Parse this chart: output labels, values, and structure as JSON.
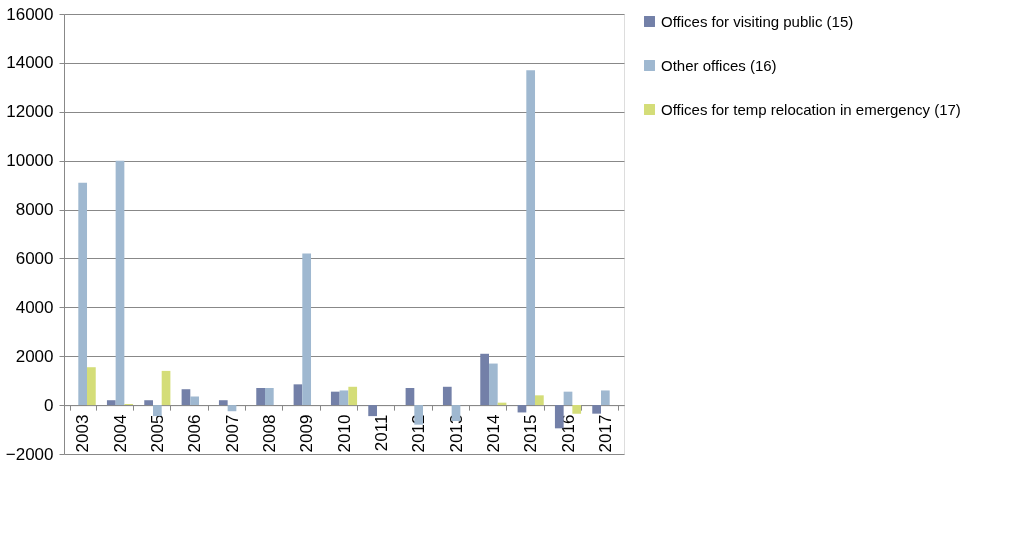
{
  "chart_data": {
    "type": "bar",
    "categories": [
      "2003",
      "2004",
      "2005",
      "2006",
      "2007",
      "2008",
      "2009",
      "2010",
      "2011",
      "2012",
      "2013",
      "2014",
      "2015",
      "2016",
      "2017"
    ],
    "series": [
      {
        "name": "Offices for visiting public (15)",
        "color": "#7380a8",
        "values": [
          null,
          200,
          200,
          650,
          200,
          700,
          850,
          550,
          -450,
          700,
          750,
          2100,
          -300,
          -950,
          -350
        ]
      },
      {
        "name": "Other offices (16)",
        "color": "#9fb8d0",
        "values": [
          9100,
          10000,
          -450,
          350,
          -250,
          700,
          6200,
          600,
          null,
          -800,
          -650,
          1700,
          13700,
          550,
          600
        ]
      },
      {
        "name": "Offices for temp relocation in emergency (17)",
        "color": "#d4dd78",
        "values": [
          1550,
          50,
          1400,
          null,
          null,
          null,
          null,
          750,
          null,
          null,
          null,
          100,
          400,
          -350,
          null
        ]
      }
    ],
    "ylim": [
      -2000,
      16000
    ],
    "yticks": [
      -2000,
      0,
      2000,
      4000,
      6000,
      8000,
      10000,
      12000,
      14000,
      16000
    ],
    "grid": "y",
    "legend": "right"
  }
}
